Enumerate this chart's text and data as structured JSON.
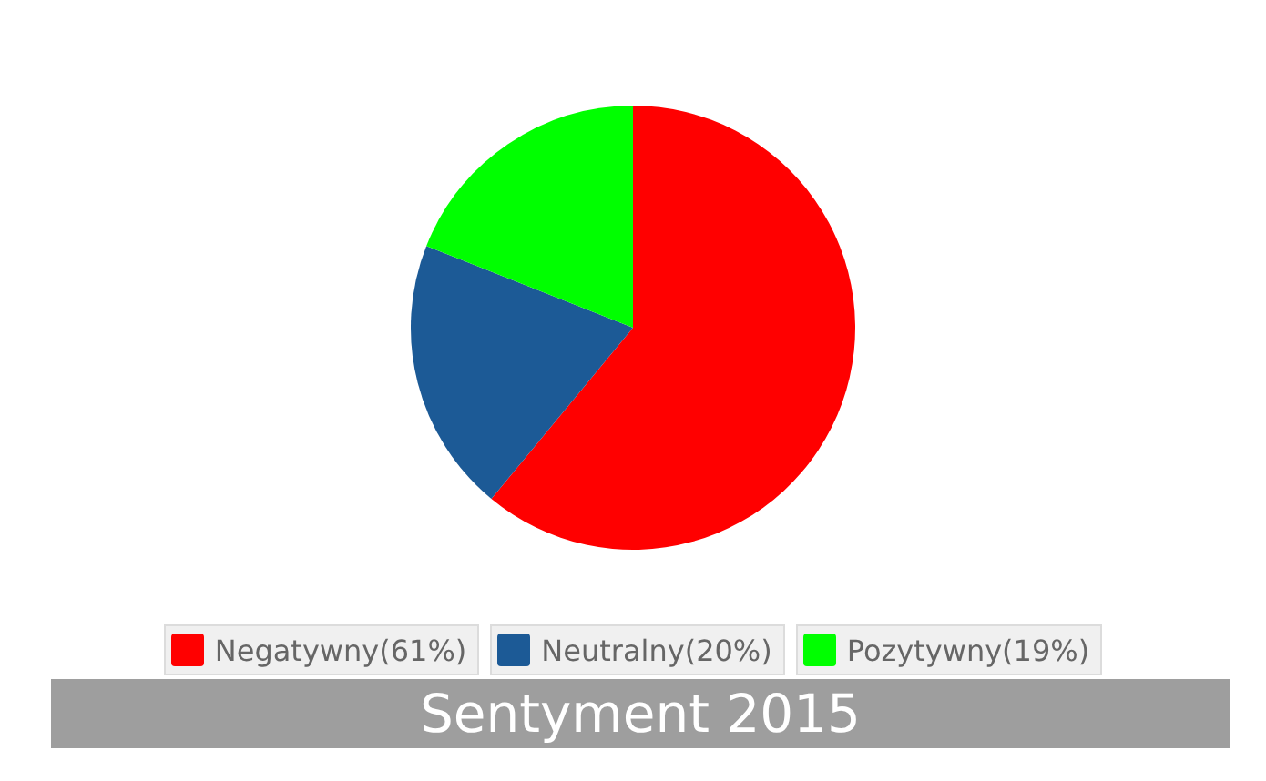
{
  "chart_data": {
    "type": "pie",
    "title": "Sentyment 2015",
    "categories": [
      "Negatywny(61%)",
      "Neutralny(20%)",
      "Pozytywny(19%)"
    ],
    "values": [
      61,
      20,
      19
    ],
    "colors": [
      "#ff0000",
      "#1c5a96",
      "#00ff00"
    ],
    "legend": "bottom"
  }
}
